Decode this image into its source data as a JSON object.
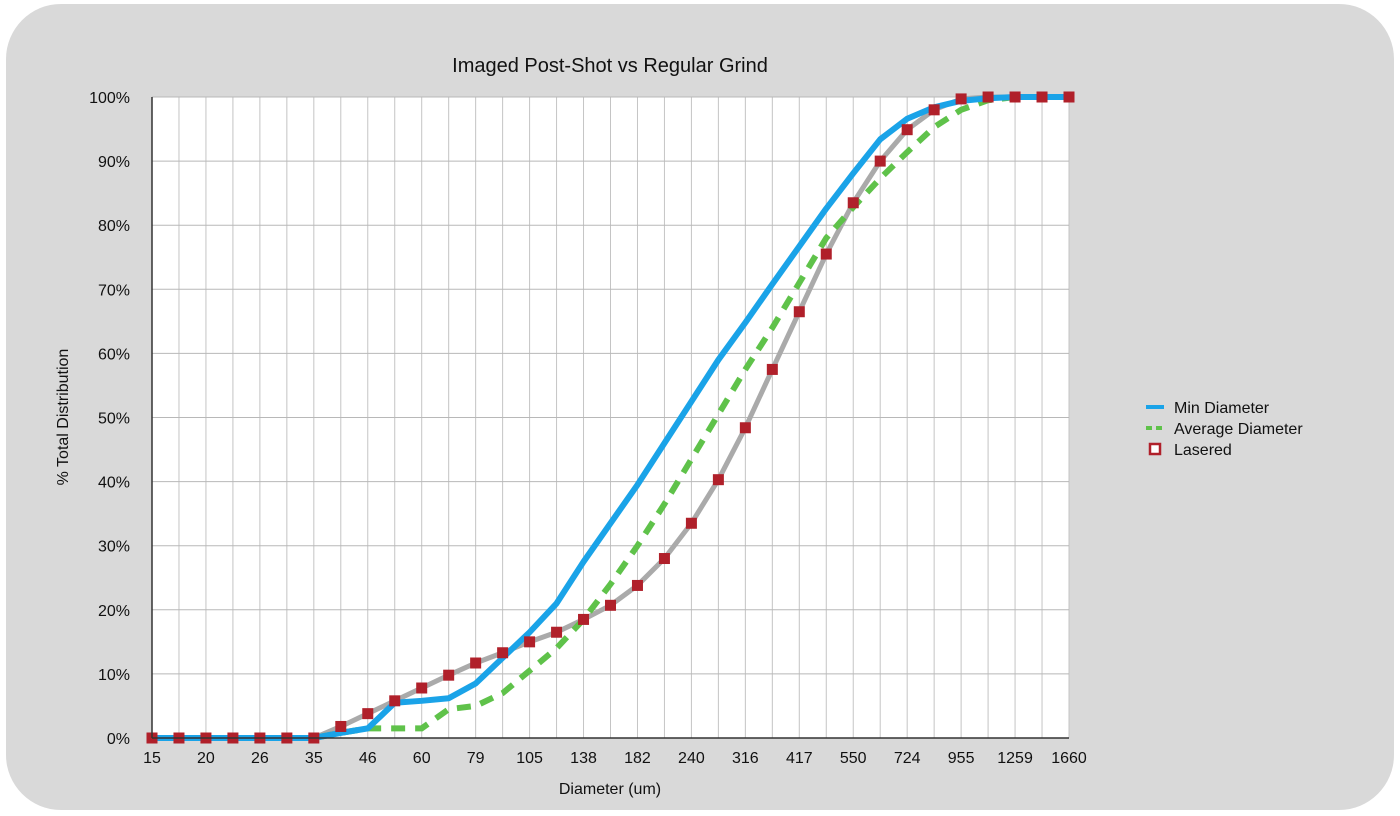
{
  "chart_data": {
    "type": "line",
    "title": "Imaged Post-Shot vs Regular Grind",
    "xlabel": "Diameter (um)",
    "ylabel": "% Total Distribution",
    "ylim": [
      0,
      100
    ],
    "grid": true,
    "legend_position": "right",
    "x": [
      15,
      17.5,
      20,
      23,
      26,
      30,
      35,
      40,
      46,
      53,
      60,
      69,
      79,
      91,
      105,
      120,
      138,
      158,
      182,
      210,
      240,
      276,
      316,
      363,
      417,
      479,
      550,
      632,
      724,
      832,
      955,
      1096,
      1259,
      1446,
      1660
    ],
    "x_tick_labels": [
      "15",
      "20",
      "26",
      "35",
      "46",
      "60",
      "79",
      "105",
      "138",
      "182",
      "240",
      "316",
      "417",
      "550",
      "724",
      "955",
      "1259",
      "1660"
    ],
    "y_tick_labels": [
      "0%",
      "10%",
      "20%",
      "30%",
      "40%",
      "50%",
      "60%",
      "70%",
      "80%",
      "90%",
      "100%"
    ],
    "series": [
      {
        "name": "Min Diameter",
        "color": "#1aa3e8",
        "style": "solid",
        "values": [
          0,
          0,
          0,
          0,
          0,
          0,
          0,
          0.8,
          1.5,
          5.5,
          5.8,
          6.2,
          8.5,
          12.5,
          16.5,
          21,
          27.5,
          33.5,
          39.5,
          46,
          52.5,
          59,
          64.8,
          70.8,
          76.7,
          82.6,
          88.1,
          93.4,
          96.6,
          98.4,
          99.4,
          99.8,
          100,
          100,
          100
        ]
      },
      {
        "name": "Average Diameter",
        "color": "#5fc24a",
        "style": "dashed",
        "values": [
          0,
          0,
          0,
          0,
          0,
          0,
          0,
          0.8,
          1.5,
          1.5,
          1.5,
          4.5,
          5,
          7,
          10.5,
          14,
          18.5,
          24,
          30,
          36.5,
          43.5,
          50.5,
          57.5,
          64,
          71,
          78,
          82.8,
          87.3,
          91.4,
          95.3,
          98,
          99.5,
          100,
          100,
          100
        ]
      },
      {
        "name": "Lasered",
        "color": "#b0202a",
        "line_color": "#aaaaaa",
        "style": "line-markers",
        "values": [
          0,
          0,
          0,
          0,
          0,
          0,
          0,
          1.8,
          3.8,
          5.8,
          7.8,
          9.8,
          11.7,
          13.3,
          15,
          16.5,
          18.5,
          20.7,
          23.8,
          28,
          33.5,
          40.3,
          48.4,
          57.5,
          66.5,
          75.5,
          83.5,
          90,
          94.9,
          98,
          99.7,
          100,
          100,
          100,
          100
        ]
      }
    ]
  }
}
